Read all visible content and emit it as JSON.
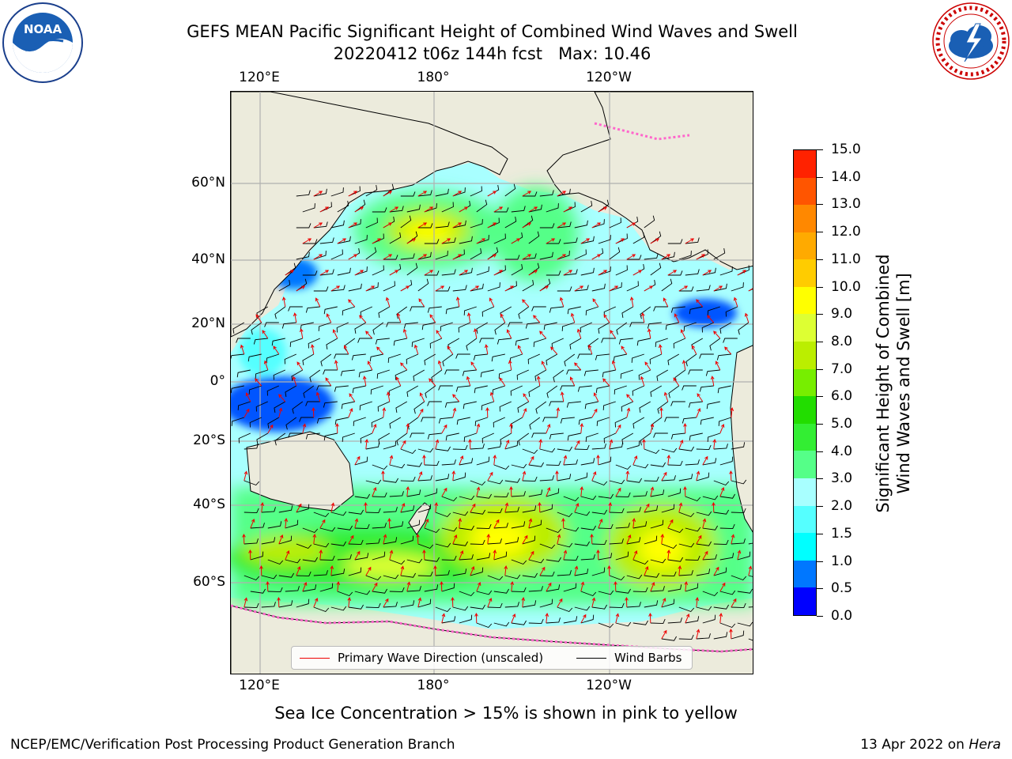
{
  "header": {
    "title_line1": "GEFS MEAN Pacific Significant Height of Combined Wind Waves and Swell",
    "title_line2": "20220412 t06z 144h fcst   Max: 10.46"
  },
  "logos": {
    "noaa": {
      "text": "NOAA",
      "ring_text": "NATIONAL OCEANIC AND ATMOSPHERIC ADMINISTRATION · U.S. DEPARTMENT OF COMMERCE"
    },
    "nws": {
      "ring_text": "NATIONAL WEATHER SERVICE"
    }
  },
  "map": {
    "lon_labels": [
      "120°E",
      "180°",
      "120°W"
    ],
    "lat_labels": [
      "60°N",
      "40°N",
      "20°N",
      "0°",
      "20°S",
      "40°S",
      "60°S"
    ],
    "colors": {
      "land": "#ecebdc",
      "ocean_base": "#a8ffff",
      "grid": "#b0b0b0",
      "wave_arrow": "#ee0000",
      "wind_barb": "#000000",
      "sea_ice": "#ff66cc"
    }
  },
  "legend": {
    "wave_label": "Primary Wave Direction (unscaled)",
    "barb_label": "Wind Barbs"
  },
  "colorbar": {
    "title_line1": "Significant Height of Combined",
    "title_line2": "Wind Waves and Swell [m]",
    "labels": [
      "0.0",
      "0.5",
      "1.0",
      "1.5",
      "2.0",
      "3.0",
      "4.0",
      "5.0",
      "6.0",
      "7.0",
      "8.0",
      "9.0",
      "10.0",
      "11.0",
      "12.0",
      "13.0",
      "14.0",
      "15.0"
    ],
    "colors": [
      "#0000ff",
      "#0077ff",
      "#00ffff",
      "#55ffff",
      "#a8ffff",
      "#55ff88",
      "#33ee33",
      "#22dd00",
      "#77ee00",
      "#bbee00",
      "#ddff33",
      "#ffff00",
      "#ffcc00",
      "#ffaa00",
      "#ff8800",
      "#ff5500",
      "#ff2200"
    ]
  },
  "footer": {
    "note": "Sea Ice Concentration > 15% is shown in pink to yellow",
    "credit": "NCEP/EMC/Verification Post Processing Product Generation Branch",
    "date": "13 Apr 2022 on",
    "machine": "Hera"
  }
}
